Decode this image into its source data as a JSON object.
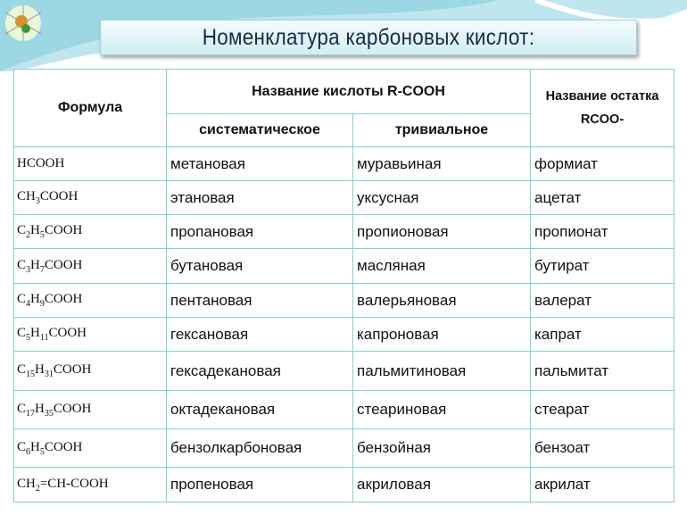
{
  "title": "Номенклатура карбоновых кислот:",
  "colors": {
    "border": "#86d0cf",
    "title_text": "#1a2a48",
    "title_bg": "#cfeef3"
  },
  "header": {
    "formula": "Формула",
    "acid_name": "Название кислоты R-COOH",
    "systematic": "систематическое",
    "trivial": "тривиальное",
    "residue_line1": "Название остатка",
    "residue_line2": "RCOO-"
  },
  "rows": [
    {
      "formula": [
        [
          "HCOOH",
          ""
        ]
      ],
      "systematic": "метановая",
      "trivial": "муравьиная",
      "residue": "формиат"
    },
    {
      "formula": [
        [
          "CH",
          "3"
        ],
        [
          "COOH",
          ""
        ]
      ],
      "systematic": "этановая",
      "trivial": "уксусная",
      "residue": "ацетат"
    },
    {
      "formula": [
        [
          "C",
          "2"
        ],
        [
          "H",
          "5"
        ],
        [
          "COOH",
          ""
        ]
      ],
      "systematic": "пропановая",
      "trivial": "пропионовая",
      "residue": "пропионат"
    },
    {
      "formula": [
        [
          "C",
          "3"
        ],
        [
          "H",
          "7"
        ],
        [
          "COOH",
          ""
        ]
      ],
      "systematic": "бутановая",
      "trivial": "масляная",
      "residue": "бутират"
    },
    {
      "formula": [
        [
          "C",
          "4"
        ],
        [
          "H",
          "9"
        ],
        [
          "COOH",
          ""
        ]
      ],
      "systematic": "пентановая",
      "trivial": "валерьяновая",
      "residue": "валерат"
    },
    {
      "formula": [
        [
          "C",
          "5"
        ],
        [
          "H",
          "11"
        ],
        [
          "COOH",
          ""
        ]
      ],
      "systematic": "гексановая",
      "trivial": "капроновая",
      "residue": "капрат"
    },
    {
      "formula": [
        [
          "C",
          "15"
        ],
        [
          "H",
          "31"
        ],
        [
          "COOH",
          ""
        ]
      ],
      "systematic": "гексадекановая",
      "trivial": "пальмитиновая",
      "residue": "пальмитат"
    },
    {
      "formula": [
        [
          "C",
          "17"
        ],
        [
          "H",
          "35"
        ],
        [
          "COOH",
          ""
        ]
      ],
      "systematic": "октадекановая",
      "trivial": "стеариновая",
      "residue": "стеарат"
    },
    {
      "formula": [
        [
          "C",
          "6"
        ],
        [
          "H",
          "5"
        ],
        [
          "COOH",
          ""
        ]
      ],
      "systematic": "бензолкарбоновая",
      "trivial": "бензойная",
      "residue": "бензоат"
    },
    {
      "formula": [
        [
          "CH",
          "2"
        ],
        [
          "=CH-COOH",
          ""
        ]
      ],
      "systematic": "пропеновая",
      "trivial": "акриловая",
      "residue": "акрилат"
    }
  ]
}
